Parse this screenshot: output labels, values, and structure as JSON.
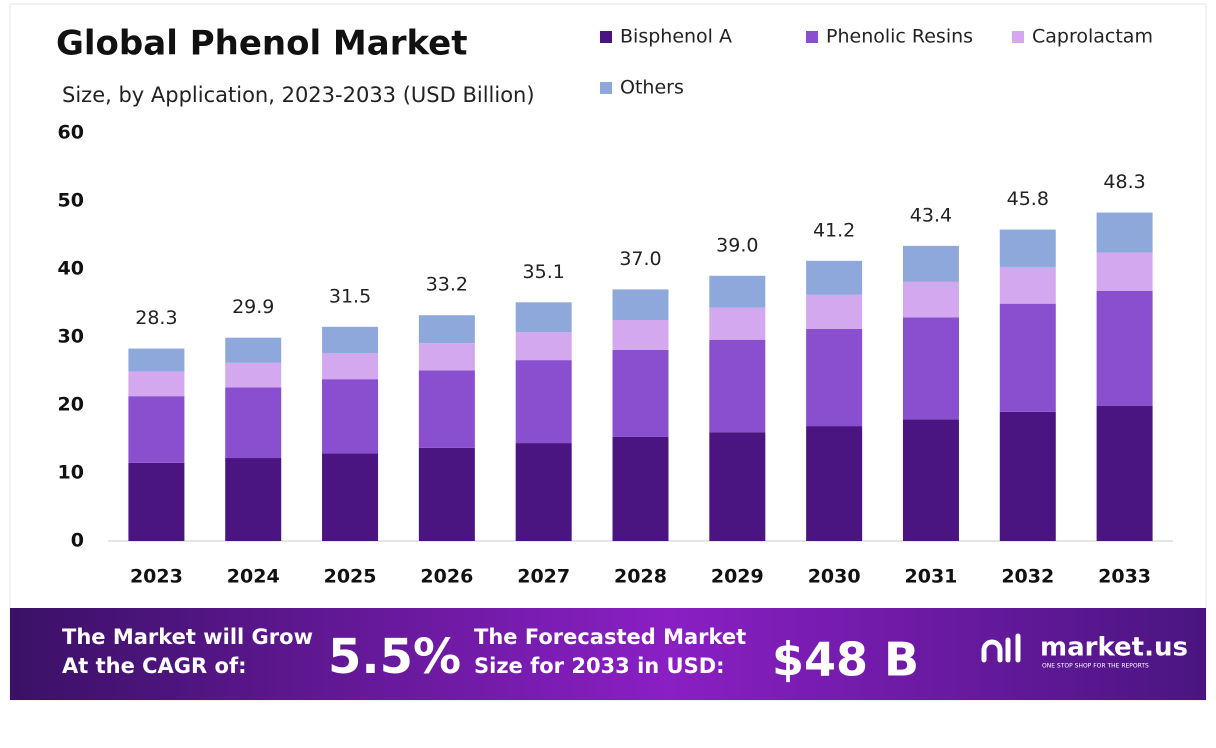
{
  "chart_data": {
    "type": "stacked_bar",
    "title": "Global Phenol Market",
    "subtitle": "Size, by Application, 2023-2033 (USD Billion)",
    "categories": [
      "2023",
      "2024",
      "2025",
      "2026",
      "2027",
      "2028",
      "2029",
      "2030",
      "2031",
      "2032",
      "2033"
    ],
    "series": [
      {
        "name": "Bisphenol A",
        "color": "#4a1580",
        "values": [
          11.5,
          12.2,
          12.9,
          13.7,
          14.4,
          15.3,
          16.0,
          16.9,
          17.9,
          19.0,
          19.9
        ]
      },
      {
        "name": "Phenolic Resins",
        "color": "#8a4fcf",
        "values": [
          9.8,
          10.4,
          10.9,
          11.4,
          12.2,
          12.8,
          13.6,
          14.3,
          15.0,
          15.9,
          16.9
        ]
      },
      {
        "name": "Caprolactam",
        "color": "#d4a8ee",
        "values": [
          3.6,
          3.6,
          3.8,
          4.0,
          4.1,
          4.4,
          4.7,
          5.0,
          5.2,
          5.4,
          5.6
        ]
      },
      {
        "name": "Others",
        "color": "#8fa8dc",
        "values": [
          3.4,
          3.7,
          3.9,
          4.1,
          4.4,
          4.5,
          4.7,
          5.0,
          5.3,
          5.5,
          5.9
        ]
      }
    ],
    "totals": [
      28.3,
      29.9,
      31.5,
      33.2,
      35.1,
      37.0,
      39.0,
      41.2,
      43.4,
      45.8,
      48.3
    ],
    "total_labels": [
      "28.3",
      "29.9",
      "31.5",
      "33.2",
      "35.1",
      "37.0",
      "39.0",
      "41.2",
      "43.4",
      "45.8",
      "48.3"
    ],
    "ylim": [
      0,
      60
    ],
    "yticks": [
      0,
      10,
      20,
      30,
      40,
      50,
      60
    ],
    "grid": false
  },
  "footer": {
    "cagr_text": [
      "The Market will Grow",
      "At the CAGR of:"
    ],
    "cagr": "5.5%",
    "forecast_text": [
      "The Forecasted Market",
      "Size for 2033 in USD:"
    ],
    "forecast": "$48 B",
    "brand": "market.us",
    "tagline": "ONE STOP SHOP FOR THE REPORTS"
  }
}
